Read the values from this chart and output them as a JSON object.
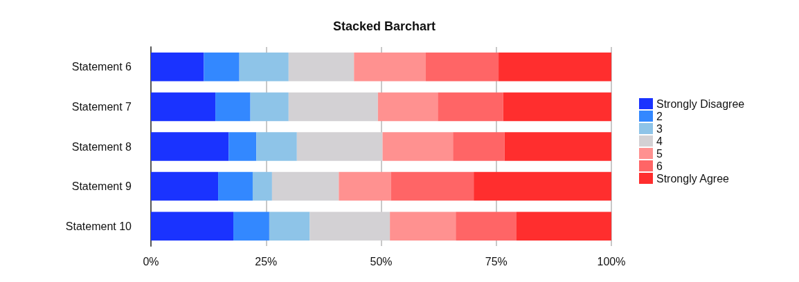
{
  "chart_data": {
    "type": "bar",
    "title": "Stacked Barchart",
    "orientation": "horizontal",
    "stacked": true,
    "categories": [
      "Statement 6",
      "Statement 7",
      "Statement 8",
      "Statement 9",
      "Statement 10"
    ],
    "series": [
      {
        "name": "Strongly Disagree",
        "color": "#1a33ff",
        "values": [
          11.5,
          14.0,
          16.9,
          14.6,
          17.9
        ]
      },
      {
        "name": "2",
        "color": "#3388ff",
        "values": [
          7.7,
          7.6,
          6.0,
          7.5,
          7.8
        ]
      },
      {
        "name": "3",
        "color": "#8ec4e8",
        "values": [
          10.7,
          8.3,
          8.8,
          4.2,
          8.8
        ]
      },
      {
        "name": "4",
        "color": "#d3d1d4",
        "values": [
          14.2,
          19.4,
          18.6,
          14.5,
          17.4
        ]
      },
      {
        "name": "5",
        "color": "#ff9190",
        "values": [
          15.6,
          13.0,
          15.3,
          11.3,
          14.3
        ]
      },
      {
        "name": "6",
        "color": "#ff6566",
        "values": [
          15.8,
          14.2,
          11.2,
          18.0,
          13.2
        ]
      },
      {
        "name": "Strongly Agree",
        "color": "#ff2e2e",
        "values": [
          24.5,
          23.5,
          23.2,
          29.9,
          20.6
        ]
      }
    ],
    "xlim": [
      0,
      100
    ],
    "xticks": [
      {
        "value": 0,
        "label": "0%"
      },
      {
        "value": 25,
        "label": "25%"
      },
      {
        "value": 50,
        "label": "50%"
      },
      {
        "value": 75,
        "label": "75%"
      },
      {
        "value": 100,
        "label": "100%"
      }
    ],
    "grid": "x",
    "legend": "right"
  }
}
